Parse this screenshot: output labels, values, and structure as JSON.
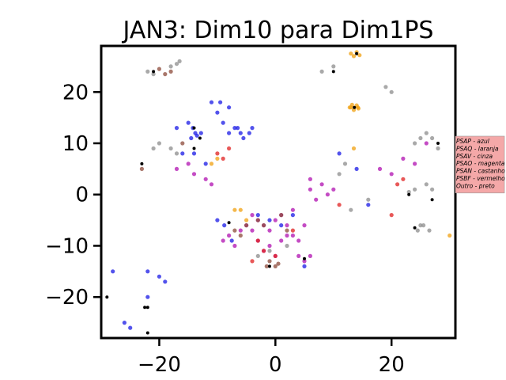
{
  "chart_data": {
    "type": "scatter",
    "title": "JAN3: Dim10 para Dim1PS",
    "xlabel": "",
    "ylabel": "",
    "xlim": [
      -30,
      31
    ],
    "ylim": [
      -28,
      29
    ],
    "xticks": [
      -20,
      0,
      20
    ],
    "yticks": [
      -20,
      -10,
      0,
      10,
      20
    ],
    "xtick_labels": [
      "−20",
      "0",
      "20"
    ],
    "ytick_labels": [
      "−20",
      "−10",
      "0",
      "10",
      "20"
    ],
    "grid": false,
    "legend_placement": "right, outside plot",
    "legend": [
      "PSAP - azul",
      "PSAQ - laranja",
      "PSAV - cinza",
      "PSAO - magenta",
      "PSAN - castanho",
      "PSBF - vermelho",
      "Outro - preto"
    ],
    "colors": {
      "PSAP": "#1a1ae6",
      "PSAQ": "#f0a010",
      "PSAV": "#8c8c8c",
      "PSAO": "#b010b0",
      "PSAN": "#8c4a3a",
      "PSBF": "#e02020",
      "Outro": "#000000",
      "legend_bg": "#f4a8a8"
    },
    "series": [
      {
        "name": "PSAP - azul",
        "color": "#1a1ae6",
        "x": [
          -14.5,
          -13.8,
          -14.2,
          -13.5,
          -12.8,
          -15,
          -17,
          -11,
          -10,
          -9,
          -8,
          -7,
          -6,
          -5.5,
          -4.5,
          -6.5,
          -9.5,
          -8,
          -14,
          -16,
          -12,
          -4,
          -7.5,
          -8.8,
          -28,
          -26,
          -25,
          -22,
          -20,
          -22,
          -19,
          -10,
          5,
          11,
          14,
          16,
          -3,
          -1,
          1,
          3
        ],
        "y": [
          11,
          12,
          13,
          11.5,
          12,
          14,
          13,
          18,
          16,
          14,
          12,
          13,
          12,
          11,
          12,
          13,
          18,
          17,
          8,
          8,
          6,
          13,
          -9,
          -6,
          -15,
          -25,
          -26,
          -20,
          -16,
          -15,
          -17,
          -5,
          -14,
          8,
          5,
          -2,
          -4,
          -5,
          -6,
          -4
        ]
      },
      {
        "name": "PSAQ - laranja",
        "color": "#f0a010",
        "x": [
          13,
          13.5,
          14,
          14.5,
          13.2,
          14.2,
          13,
          13.5,
          14,
          12.8,
          14.3,
          13.5,
          -11,
          -10,
          -7,
          -5,
          30,
          -6
        ],
        "y": [
          27.5,
          27,
          27.8,
          27.2,
          17.5,
          17,
          17,
          16.5,
          17.4,
          17,
          16.8,
          9,
          6,
          7,
          -3,
          -5,
          -8,
          -3
        ]
      },
      {
        "name": "PSAV - cinza",
        "color": "#8c8c8c",
        "x": [
          -22,
          -21,
          -18,
          -17,
          -16.5,
          -20,
          -18,
          -17,
          24,
          25,
          26,
          27,
          28,
          26,
          27,
          23,
          24,
          25.5,
          26.5,
          25,
          24.5,
          19,
          20,
          16,
          13,
          11,
          12,
          -21,
          10,
          8,
          -3,
          -1,
          2
        ],
        "y": [
          24,
          23.5,
          25,
          25.5,
          26,
          10,
          9,
          8,
          10,
          11,
          12,
          11,
          9,
          2,
          1,
          0.5,
          1,
          -6,
          -7,
          -6,
          -7,
          21,
          20,
          -1,
          -3,
          4,
          6,
          9,
          25,
          24,
          -12,
          -11,
          -10
        ]
      },
      {
        "name": "PSAO - magenta",
        "color": "#b010b0",
        "x": [
          -3,
          -2,
          -1,
          0,
          1,
          2,
          3,
          4,
          -4,
          -5,
          -3,
          -1,
          1,
          -2,
          0,
          2,
          -6,
          -4,
          3,
          5,
          6,
          8,
          9,
          10,
          7,
          6,
          -8,
          -7,
          -9,
          4,
          5,
          6,
          18,
          20,
          22,
          24,
          26,
          -14,
          -15,
          -17,
          -12,
          -11
        ],
        "y": [
          -5,
          -6,
          -7,
          -5,
          -4,
          -6,
          -8,
          -9,
          -7,
          -6,
          -9,
          -10,
          -9,
          -11,
          -12,
          -8,
          -7,
          -4,
          -3,
          -6,
          1,
          2,
          0,
          1,
          -1,
          3,
          -8,
          -10,
          -9,
          -12,
          -13,
          -12,
          5,
          4,
          7,
          6,
          10,
          4,
          6,
          5,
          3,
          2
        ]
      },
      {
        "name": "PSAN - castanho",
        "color": "#8c4a3a",
        "x": [
          -1,
          0,
          -1.5,
          0.5,
          -19,
          -18,
          -20,
          -2,
          -3,
          1,
          2,
          -7,
          -6,
          -5,
          -16,
          -23
        ],
        "y": [
          -13,
          -14,
          -14,
          -13.5,
          23.5,
          24,
          24.5,
          -6,
          -5,
          -4,
          -7,
          -7,
          -8,
          -6,
          10,
          5
        ]
      },
      {
        "name": "PSBF - vermelho",
        "color": "#e02020",
        "x": [
          -10,
          -9,
          -8,
          21,
          22,
          -3,
          0,
          3,
          -4,
          -2,
          11,
          20
        ],
        "y": [
          8,
          7,
          9,
          2,
          3,
          -9,
          -12,
          -7,
          -13,
          -11,
          -2,
          -4
        ]
      },
      {
        "name": "Outro - preto",
        "color": "#000000",
        "x": [
          14,
          13.6,
          -14,
          -8,
          -1,
          5,
          -22,
          23,
          27,
          24,
          -29,
          -22,
          -23,
          -21,
          -14,
          -13,
          10,
          28,
          -22.5
        ],
        "y": [
          27.5,
          17,
          13,
          -5.5,
          -14,
          -12.5,
          -22,
          0,
          -1,
          -6.5,
          -20,
          -27,
          6,
          24,
          9,
          11,
          24,
          10,
          -22
        ]
      }
    ]
  }
}
